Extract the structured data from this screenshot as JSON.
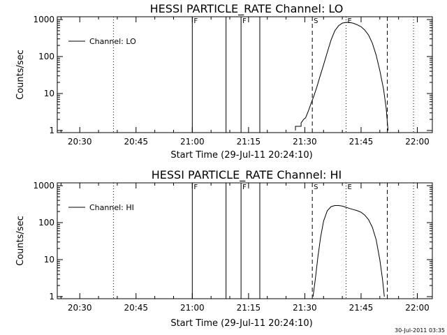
{
  "footer": {
    "timestamp": "30-Jul-2011 03:35"
  },
  "chart_data": [
    {
      "type": "line",
      "title": "HESSI PARTICLE_RATE Channel: LO",
      "xlabel": "Start Time (29-Jul-11 20:24:10)",
      "ylabel": "Counts/sec",
      "yscale": "log",
      "ylim": [
        1,
        1000
      ],
      "xlim": [
        "20:24",
        "22:04"
      ],
      "x_ticks": [
        "20:30",
        "20:45",
        "21:00",
        "21:15",
        "21:30",
        "21:45",
        "22:00"
      ],
      "y_ticks": [
        "1",
        "10",
        "100",
        "1000"
      ],
      "legend": {
        "label": "Channel: LO",
        "position": "top-left"
      },
      "markers": [
        {
          "time": "20:39",
          "style": "dotted",
          "label": ""
        },
        {
          "time": "21:00",
          "style": "solid",
          "label": "F"
        },
        {
          "time": "21:09",
          "style": "solid",
          "label": ""
        },
        {
          "time": "21:13",
          "style": "solid",
          "label": "F"
        },
        {
          "time": "21:18",
          "style": "solid",
          "label": ""
        },
        {
          "time": "21:32",
          "style": "dashed",
          "label": "S"
        },
        {
          "time": "21:41",
          "style": "dotted",
          "label": "E"
        },
        {
          "time": "21:52",
          "style": "dashed",
          "label": ""
        },
        {
          "time": "21:59",
          "style": "dotted",
          "label": ""
        }
      ],
      "series": [
        {
          "name": "Channel: LO",
          "points": [
            [
              "21:27.5",
              1
            ],
            [
              "21:27.5",
              1.3
            ],
            [
              "21:29.0",
              1.3
            ],
            [
              "21:29.0",
              1.6
            ],
            [
              "21:29.7",
              2.0
            ],
            [
              "21:30.2",
              2.2
            ],
            [
              "21:30.5",
              2.6
            ],
            [
              "21:31.0",
              3.5
            ],
            [
              "21:31.7",
              5.5
            ],
            [
              "21:32.5",
              9
            ],
            [
              "21:33.3",
              16
            ],
            [
              "21:34.0",
              28
            ],
            [
              "21:35.0",
              60
            ],
            [
              "21:36.0",
              130
            ],
            [
              "21:37.0",
              280
            ],
            [
              "21:38.0",
              500
            ],
            [
              "21:39.0",
              680
            ],
            [
              "21:40.0",
              800
            ],
            [
              "21:41.0",
              840
            ],
            [
              "21:42.0",
              830
            ],
            [
              "21:43.0",
              790
            ],
            [
              "21:44.0",
              720
            ],
            [
              "21:45.0",
              640
            ],
            [
              "21:46.0",
              520
            ],
            [
              "21:47.0",
              380
            ],
            [
              "21:48.0",
              230
            ],
            [
              "21:49.0",
              110
            ],
            [
              "21:50.0",
              42
            ],
            [
              "21:51.0",
              13
            ],
            [
              "21:51.7",
              4
            ],
            [
              "21:52.2",
              1
            ]
          ]
        }
      ]
    },
    {
      "type": "line",
      "title": "HESSI PARTICLE_RATE Channel: HI",
      "xlabel": "Start Time (29-Jul-11 20:24:10)",
      "ylabel": "Counts/sec",
      "yscale": "log",
      "ylim": [
        1,
        1000
      ],
      "xlim": [
        "20:24",
        "22:04"
      ],
      "x_ticks": [
        "20:30",
        "20:45",
        "21:00",
        "21:15",
        "21:30",
        "21:45",
        "22:00"
      ],
      "y_ticks": [
        "1",
        "10",
        "100",
        "1000"
      ],
      "legend": {
        "label": "Channel: HI",
        "position": "top-left"
      },
      "markers": [
        {
          "time": "20:39",
          "style": "dotted",
          "label": ""
        },
        {
          "time": "21:00",
          "style": "solid",
          "label": "F"
        },
        {
          "time": "21:09",
          "style": "solid",
          "label": ""
        },
        {
          "time": "21:13",
          "style": "solid",
          "label": "F"
        },
        {
          "time": "21:18",
          "style": "solid",
          "label": ""
        },
        {
          "time": "21:32",
          "style": "dashed",
          "label": "S"
        },
        {
          "time": "21:41",
          "style": "dotted",
          "label": "E"
        },
        {
          "time": "21:52",
          "style": "dashed",
          "label": ""
        },
        {
          "time": "21:59",
          "style": "dotted",
          "label": ""
        }
      ],
      "series": [
        {
          "name": "Channel: HI",
          "points": [
            [
              "21:32.2",
              1
            ],
            [
              "21:32.8",
              3
            ],
            [
              "21:33.5",
              12
            ],
            [
              "21:34.2",
              40
            ],
            [
              "21:35.0",
              110
            ],
            [
              "21:36.0",
              210
            ],
            [
              "21:37.0",
              270
            ],
            [
              "21:38.0",
              290
            ],
            [
              "21:39.0",
              290
            ],
            [
              "21:40.0",
              280
            ],
            [
              "21:41.0",
              260
            ],
            [
              "21:42.0",
              240
            ],
            [
              "21:43.0",
              225
            ],
            [
              "21:44.0",
              210
            ],
            [
              "21:45.0",
              190
            ],
            [
              "21:46.0",
              160
            ],
            [
              "21:47.0",
              120
            ],
            [
              "21:48.0",
              75
            ],
            [
              "21:49.0",
              35
            ],
            [
              "21:50.0",
              10
            ],
            [
              "21:50.7",
              3
            ],
            [
              "21:51.2",
              1
            ]
          ]
        }
      ]
    }
  ]
}
